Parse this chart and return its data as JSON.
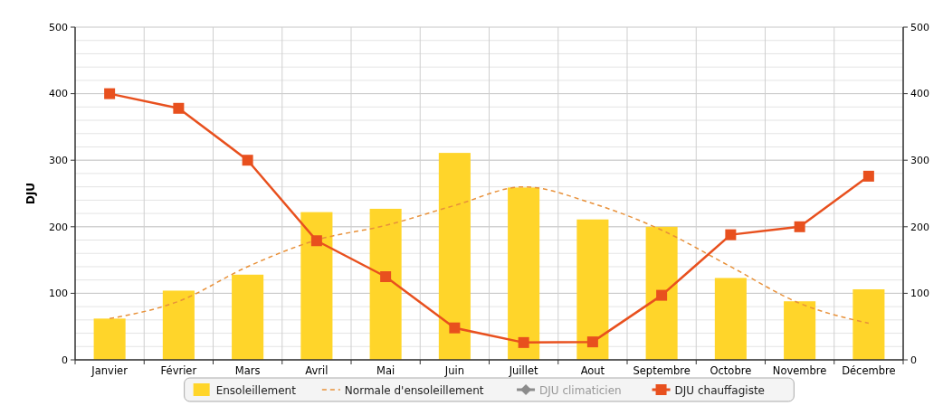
{
  "chart_data": {
    "type": "bar",
    "ylabel": "DJU",
    "categories": [
      "Janvier",
      "Février",
      "Mars",
      "Avril",
      "Mai",
      "Juin",
      "Juillet",
      "Aout",
      "Septembre",
      "Octobre",
      "Novembre",
      "Décembre"
    ],
    "series": [
      {
        "name": "Ensoleillement",
        "color": "#ffd52a",
        "values": [
          62,
          104,
          128,
          222,
          227,
          311,
          259,
          211,
          200,
          123,
          88,
          106
        ]
      },
      {
        "name": "Normale d'ensoleillement",
        "type": "line",
        "color": "#e8913a",
        "line_style": "dashed",
        "marker": "none",
        "values": [
          62,
          88,
          140,
          180,
          202,
          232,
          260,
          235,
          195,
          140,
          85,
          55
        ]
      },
      {
        "name": "DJU climaticien",
        "type": "line",
        "color": "#8c8c8c",
        "marker": "diamond",
        "values": [
          null,
          null,
          null,
          null,
          null,
          null,
          null,
          null,
          null,
          null,
          null,
          null
        ]
      },
      {
        "name": "DJU chauffagiste",
        "type": "line",
        "color": "#e8501e",
        "marker": "square",
        "line_style": "solid",
        "values": [
          400,
          378,
          300,
          179,
          125,
          48,
          26,
          27,
          97,
          188,
          200,
          276
        ]
      }
    ],
    "ylim": [
      0,
      500
    ],
    "yticks": [
      0,
      100,
      200,
      300,
      400,
      500
    ],
    "y2lim": [
      0,
      500
    ],
    "y2ticks": [
      0,
      100,
      200,
      300,
      400,
      500
    ],
    "grid": true,
    "legend": "bottom"
  }
}
